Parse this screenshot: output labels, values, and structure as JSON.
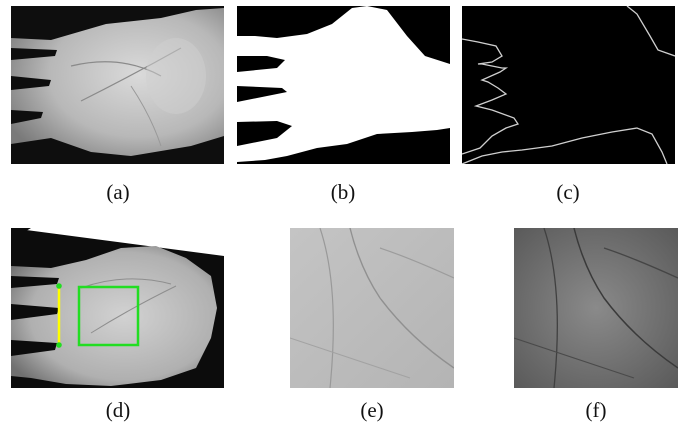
{
  "figure": {
    "captions": {
      "a": "(a)",
      "b": "(b)",
      "c": "(c)",
      "d": "(d)",
      "e": "(e)",
      "f": "(f)"
    },
    "panels": {
      "a": {
        "content": "grayscale palm image"
      },
      "b": {
        "content": "binary hand mask"
      },
      "c": {
        "content": "hand contour edges"
      },
      "d": {
        "content": "rotated palm with key points and ROI box"
      },
      "e": {
        "content": "extracted palm ROI"
      },
      "f": {
        "content": "enhanced palm ROI"
      }
    },
    "colors": {
      "background": "#ffffff",
      "mask_fill": "#ffffff",
      "contour_line": "#cfcfcf",
      "key_point_line": "#ffff00",
      "roi_box": "#22dd22",
      "key_point_dot": "#22dd22"
    }
  }
}
